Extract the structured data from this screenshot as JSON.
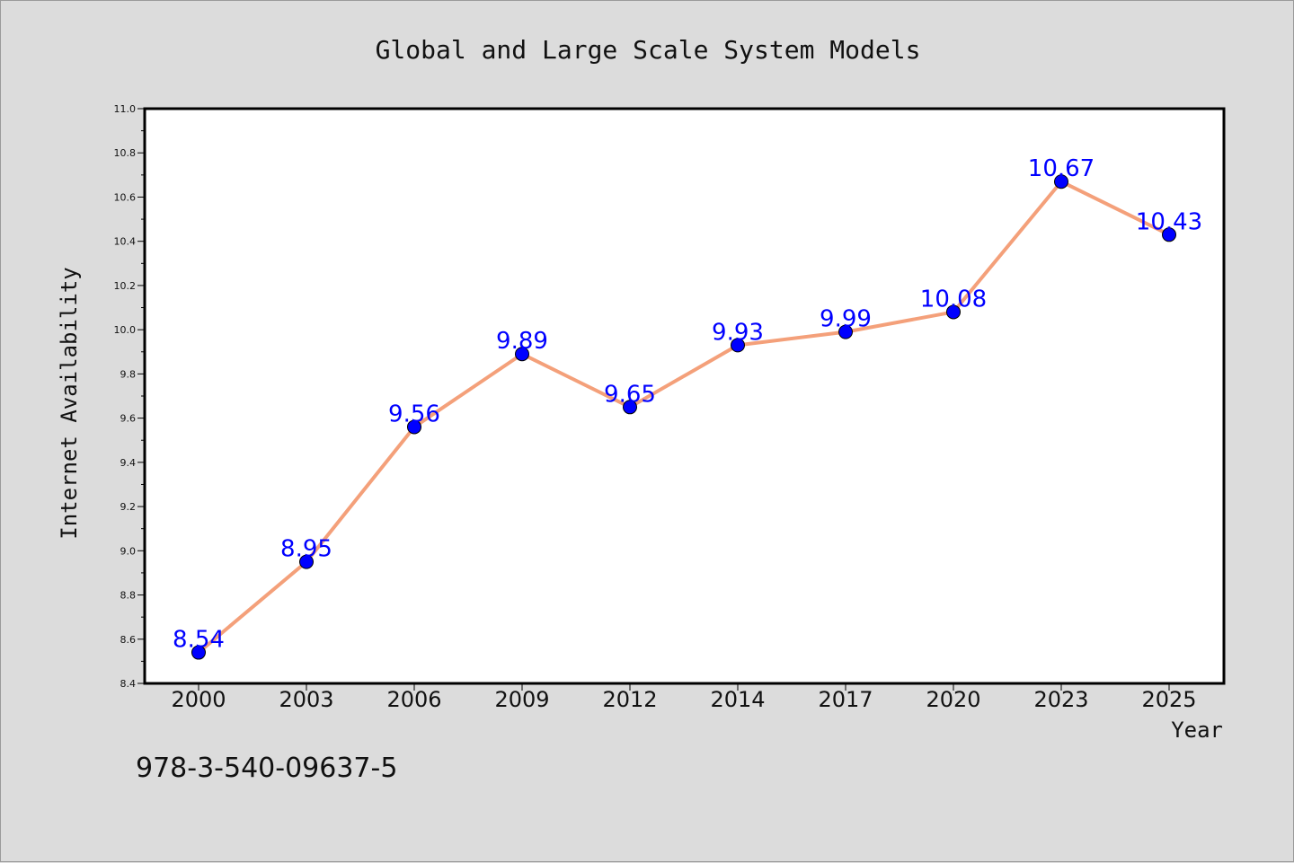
{
  "chart_data": {
    "type": "line",
    "title": "Global and Large Scale System Models",
    "xlabel": "Year",
    "ylabel": "Internet Availability",
    "categories": [
      "2000",
      "2003",
      "2006",
      "2009",
      "2012",
      "2014",
      "2017",
      "2020",
      "2023",
      "2025"
    ],
    "values": [
      8.54,
      8.95,
      9.56,
      9.89,
      9.65,
      9.93,
      9.99,
      10.08,
      10.67,
      10.43
    ],
    "data_labels": [
      "8.54",
      "8.95",
      "9.56",
      "9.89",
      "9.65",
      "9.93",
      "9.99",
      "10.08",
      "10.67",
      "10.43"
    ],
    "ylim": [
      8.4,
      11.0
    ],
    "yticks": [
      "8.4",
      "8.6",
      "8.8",
      "9.0",
      "9.2",
      "9.4",
      "9.6",
      "9.8",
      "10.0",
      "10.2",
      "10.4",
      "10.6",
      "10.8",
      "11.0"
    ],
    "grid": false,
    "line_color": "#f4a07a",
    "marker_color": "#0000ff",
    "label_color": "#0000ff"
  },
  "footer": {
    "isbn": "978-3-540-09637-5"
  }
}
